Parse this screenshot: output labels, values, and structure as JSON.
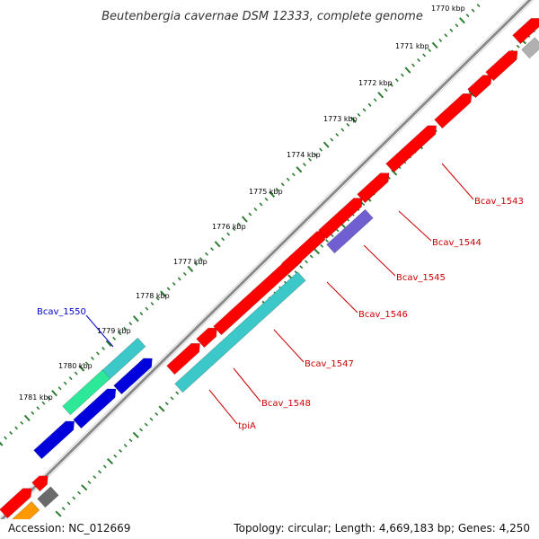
{
  "title": "Beutenbergia cavernae DSM 12333, complete genome",
  "footer": {
    "accession": "Accession: NC_012669",
    "topology": "Topology: circular; Length: 4,669,183 bp; Genes: 4,250"
  },
  "colors": {
    "backbone": "#8a8a8a",
    "tick": "#2e7d32",
    "cds_red": "#ff0000",
    "cds_cyan": "#3cc8c8",
    "cds_blue": "#0000dd",
    "cds_purple": "#6f5fd0",
    "cds_green": "#2ee89a",
    "cds_gray": "#b0b0b0",
    "cds_darkgray": "#6a6a6a",
    "cds_orange": "#ff9900",
    "label_red": "#cc0000",
    "label_blue": "#0000cc"
  },
  "scale_labels": [
    {
      "text": "1770 kbp"
    },
    {
      "text": "1771 kbp"
    },
    {
      "text": "1772 kbp"
    },
    {
      "text": "1773 kbp"
    },
    {
      "text": "1774 kbp"
    },
    {
      "text": "1775 kbp"
    },
    {
      "text": "1776 kbp"
    },
    {
      "text": "1777 kbp"
    },
    {
      "text": "1778 kbp"
    },
    {
      "text": "1779 kbp"
    },
    {
      "text": "1780 kbp"
    },
    {
      "text": "1781 kbp"
    }
  ],
  "gene_labels": [
    {
      "text": "Bcav_1543",
      "color": "red"
    },
    {
      "text": "Bcav_1544",
      "color": "red"
    },
    {
      "text": "Bcav_1545",
      "color": "red"
    },
    {
      "text": "Bcav_1546",
      "color": "red"
    },
    {
      "text": "Bcav_1547",
      "color": "red"
    },
    {
      "text": "Bcav_1548",
      "color": "red"
    },
    {
      "text": "tpiA",
      "color": "red"
    },
    {
      "text": "Bcav_1550",
      "color": "blue"
    }
  ]
}
